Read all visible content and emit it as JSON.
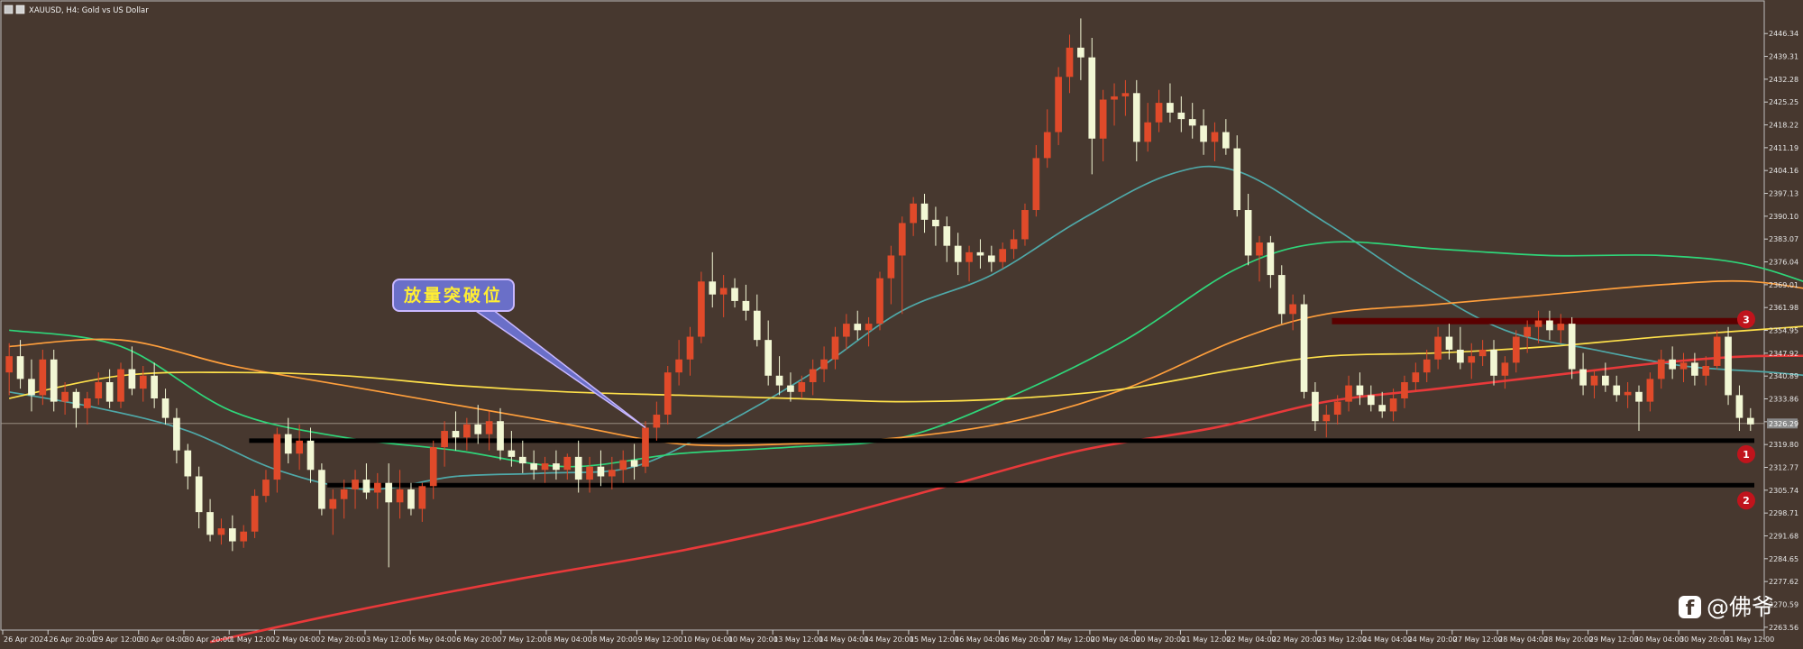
{
  "window": {
    "title": "XAUUSD, H4:  Gold vs US Dollar"
  },
  "colors": {
    "background": "#47382f",
    "bull_candle": "#e04a2a",
    "bear_candle": "#f2f7d4",
    "ma_red": "#e8393a",
    "ma_yellow": "#ffe14a",
    "ma_orange": "#ff9f3c",
    "ma_green": "#2fd67a",
    "ma_teal": "#4fa8a8",
    "support_line": "#000000",
    "resistance_zone": "#5a0000",
    "marker": "#c0141c",
    "callout_fill": "#6a6fc8",
    "callout_text": "#ffee33"
  },
  "callout": {
    "text": "放量突破位"
  },
  "markers": [
    "1",
    "2",
    "3"
  ],
  "current_price_label": "2326.29",
  "watermark": {
    "icon": "facebook-icon",
    "text": "@佛爷"
  },
  "chart_data": {
    "type": "candlestick",
    "symbol": "XAUUSD",
    "timeframe": "H4",
    "ylim": [
      2263.51,
      2453.34
    ],
    "y_ticks": [
      "2446.34",
      "2439.31",
      "2432.28",
      "2425.25",
      "2418.22",
      "2411.19",
      "2404.16",
      "2397.13",
      "2390.10",
      "2383.07",
      "2376.04",
      "2369.01",
      "2361.98",
      "2354.95",
      "2347.92",
      "2340.89",
      "2333.86",
      "2326.83",
      "2319.80",
      "2312.77",
      "2305.74",
      "2298.71",
      "2291.68",
      "2284.65",
      "2277.62",
      "2270.59",
      "2263.56"
    ],
    "x_ticks": [
      "26 Apr 2024",
      "26 Apr 20:00",
      "29 Apr 12:00",
      "30 Apr 04:00",
      "30 Apr 20:00",
      "1 May 12:00",
      "2 May 04:00",
      "2 May 20:00",
      "3 May 12:00",
      "6 May 04:00",
      "6 May 20:00",
      "7 May 12:00",
      "8 May 04:00",
      "8 May 20:00",
      "9 May 12:00",
      "10 May 04:00",
      "10 May 20:00",
      "13 May 12:00",
      "14 May 04:00",
      "14 May 20:00",
      "15 May 12:00",
      "16 May 04:00",
      "16 May 20:00",
      "17 May 12:00",
      "20 May 04:00",
      "20 May 20:00",
      "21 May 12:00",
      "22 May 04:00",
      "22 May 20:00",
      "23 May 12:00",
      "24 May 04:00",
      "24 May 20:00",
      "27 May 12:00",
      "28 May 04:00",
      "28 May 20:00",
      "29 May 12:00",
      "30 May 04:00",
      "30 May 20:00",
      "31 May 12:00"
    ],
    "ohlc": [
      [
        2342,
        2351,
        2335,
        2347
      ],
      [
        2347,
        2352,
        2337,
        2340
      ],
      [
        2340,
        2346,
        2330,
        2335
      ],
      [
        2335,
        2349,
        2332,
        2346
      ],
      [
        2346,
        2349,
        2330,
        2333
      ],
      [
        2333,
        2339,
        2329,
        2336
      ],
      [
        2336,
        2337,
        2325,
        2331
      ],
      [
        2331,
        2336,
        2326,
        2334
      ],
      [
        2334,
        2342,
        2332,
        2339
      ],
      [
        2339,
        2343,
        2331,
        2333
      ],
      [
        2333,
        2345,
        2331,
        2343
      ],
      [
        2343,
        2350,
        2335,
        2337
      ],
      [
        2337,
        2344,
        2333,
        2341
      ],
      [
        2341,
        2345,
        2331,
        2334
      ],
      [
        2334,
        2337,
        2326,
        2328
      ],
      [
        2328,
        2331,
        2314,
        2318
      ],
      [
        2318,
        2320,
        2306,
        2310
      ],
      [
        2310,
        2313,
        2294,
        2299
      ],
      [
        2299,
        2303,
        2290,
        2292
      ],
      [
        2292,
        2297,
        2289,
        2294
      ],
      [
        2294,
        2298,
        2287,
        2290
      ],
      [
        2290,
        2295,
        2288,
        2293
      ],
      [
        2293,
        2306,
        2291,
        2304
      ],
      [
        2304,
        2312,
        2302,
        2309
      ],
      [
        2309,
        2325,
        2305,
        2323
      ],
      [
        2323,
        2328,
        2314,
        2317
      ],
      [
        2317,
        2326,
        2312,
        2321
      ],
      [
        2321,
        2325,
        2308,
        2312
      ],
      [
        2312,
        2314,
        2298,
        2300
      ],
      [
        2300,
        2306,
        2292,
        2303
      ],
      [
        2303,
        2309,
        2297,
        2306
      ],
      [
        2306,
        2312,
        2300,
        2309
      ],
      [
        2309,
        2314,
        2303,
        2305
      ],
      [
        2305,
        2311,
        2300,
        2308
      ],
      [
        2308,
        2314,
        2282,
        2302
      ],
      [
        2302,
        2312,
        2297,
        2306
      ],
      [
        2306,
        2308,
        2298,
        2300
      ],
      [
        2300,
        2308,
        2296,
        2307
      ],
      [
        2307,
        2321,
        2303,
        2319
      ],
      [
        2319,
        2327,
        2313,
        2324
      ],
      [
        2324,
        2330,
        2318,
        2322
      ],
      [
        2322,
        2328,
        2318,
        2326
      ],
      [
        2326,
        2332,
        2320,
        2323
      ],
      [
        2323,
        2330,
        2318,
        2327
      ],
      [
        2327,
        2331,
        2315,
        2318
      ],
      [
        2318,
        2324,
        2313,
        2316
      ],
      [
        2316,
        2321,
        2311,
        2314
      ],
      [
        2314,
        2318,
        2309,
        2312
      ],
      [
        2312,
        2316,
        2308,
        2314
      ],
      [
        2314,
        2318,
        2309,
        2312
      ],
      [
        2312,
        2317,
        2309,
        2316
      ],
      [
        2316,
        2321,
        2305,
        2309
      ],
      [
        2309,
        2316,
        2305,
        2313
      ],
      [
        2313,
        2318,
        2307,
        2310
      ],
      [
        2310,
        2316,
        2306,
        2312
      ],
      [
        2312,
        2318,
        2308,
        2315
      ],
      [
        2315,
        2320,
        2309,
        2313
      ],
      [
        2313,
        2327,
        2311,
        2325
      ],
      [
        2325,
        2333,
        2321,
        2329
      ],
      [
        2329,
        2344,
        2326,
        2342
      ],
      [
        2342,
        2352,
        2338,
        2346
      ],
      [
        2346,
        2356,
        2341,
        2353
      ],
      [
        2353,
        2373,
        2351,
        2370
      ],
      [
        2370,
        2379,
        2362,
        2366
      ],
      [
        2366,
        2372,
        2359,
        2368
      ],
      [
        2368,
        2371,
        2362,
        2364
      ],
      [
        2364,
        2369,
        2358,
        2361
      ],
      [
        2361,
        2366,
        2350,
        2352
      ],
      [
        2352,
        2358,
        2338,
        2341
      ],
      [
        2341,
        2347,
        2335,
        2338
      ],
      [
        2338,
        2342,
        2333,
        2336
      ],
      [
        2336,
        2341,
        2334,
        2339
      ],
      [
        2339,
        2346,
        2335,
        2343
      ],
      [
        2343,
        2350,
        2339,
        2346
      ],
      [
        2346,
        2356,
        2343,
        2353
      ],
      [
        2353,
        2360,
        2349,
        2357
      ],
      [
        2357,
        2361,
        2352,
        2355
      ],
      [
        2355,
        2359,
        2350,
        2357
      ],
      [
        2357,
        2373,
        2355,
        2371
      ],
      [
        2371,
        2381,
        2363,
        2378
      ],
      [
        2378,
        2390,
        2360,
        2388
      ],
      [
        2388,
        2396,
        2384,
        2394
      ],
      [
        2394,
        2397,
        2385,
        2389
      ],
      [
        2389,
        2393,
        2381,
        2387
      ],
      [
        2387,
        2390,
        2376,
        2381
      ],
      [
        2381,
        2385,
        2372,
        2376
      ],
      [
        2376,
        2381,
        2370,
        2379
      ],
      [
        2379,
        2383,
        2374,
        2378
      ],
      [
        2378,
        2381,
        2373,
        2376
      ],
      [
        2376,
        2382,
        2374,
        2380
      ],
      [
        2380,
        2386,
        2377,
        2383
      ],
      [
        2383,
        2394,
        2381,
        2392
      ],
      [
        2392,
        2412,
        2390,
        2408
      ],
      [
        2408,
        2423,
        2405,
        2416
      ],
      [
        2416,
        2436,
        2412,
        2433
      ],
      [
        2433,
        2446,
        2428,
        2442
      ],
      [
        2442,
        2451,
        2432,
        2439
      ],
      [
        2439,
        2445,
        2403,
        2414
      ],
      [
        2414,
        2429,
        2407,
        2426
      ],
      [
        2426,
        2431,
        2418,
        2427
      ],
      [
        2427,
        2432,
        2421,
        2428
      ],
      [
        2428,
        2432,
        2407,
        2413
      ],
      [
        2413,
        2425,
        2410,
        2419
      ],
      [
        2419,
        2429,
        2416,
        2425
      ],
      [
        2425,
        2431,
        2419,
        2422
      ],
      [
        2422,
        2427,
        2416,
        2420
      ],
      [
        2420,
        2425,
        2414,
        2418
      ],
      [
        2418,
        2423,
        2409,
        2413
      ],
      [
        2413,
        2419,
        2407,
        2416
      ],
      [
        2416,
        2420,
        2409,
        2411
      ],
      [
        2411,
        2415,
        2390,
        2392
      ],
      [
        2392,
        2397,
        2375,
        2378
      ],
      [
        2378,
        2384,
        2370,
        2382
      ],
      [
        2382,
        2384,
        2368,
        2372
      ],
      [
        2372,
        2375,
        2357,
        2360
      ],
      [
        2360,
        2366,
        2355,
        2363
      ],
      [
        2363,
        2366,
        2334,
        2336
      ],
      [
        2336,
        2339,
        2324,
        2327
      ],
      [
        2327,
        2332,
        2322,
        2329
      ],
      [
        2329,
        2335,
        2326,
        2333
      ],
      [
        2333,
        2341,
        2330,
        2338
      ],
      [
        2338,
        2342,
        2332,
        2335
      ],
      [
        2335,
        2338,
        2330,
        2332
      ],
      [
        2332,
        2336,
        2328,
        2330
      ],
      [
        2330,
        2337,
        2327,
        2334
      ],
      [
        2334,
        2341,
        2331,
        2339
      ],
      [
        2339,
        2345,
        2336,
        2342
      ],
      [
        2342,
        2349,
        2339,
        2346
      ],
      [
        2346,
        2356,
        2343,
        2353
      ],
      [
        2353,
        2357,
        2346,
        2349
      ],
      [
        2349,
        2356,
        2343,
        2345
      ],
      [
        2345,
        2351,
        2340,
        2347
      ],
      [
        2347,
        2352,
        2344,
        2349
      ],
      [
        2349,
        2352,
        2338,
        2341
      ],
      [
        2341,
        2347,
        2337,
        2345
      ],
      [
        2345,
        2355,
        2342,
        2353
      ],
      [
        2353,
        2358,
        2348,
        2356
      ],
      [
        2356,
        2361,
        2351,
        2358
      ],
      [
        2358,
        2361,
        2352,
        2355
      ],
      [
        2355,
        2360,
        2351,
        2357
      ],
      [
        2357,
        2359,
        2340,
        2343
      ],
      [
        2343,
        2348,
        2335,
        2338
      ],
      [
        2338,
        2343,
        2334,
        2341
      ],
      [
        2341,
        2345,
        2336,
        2338
      ],
      [
        2338,
        2341,
        2333,
        2335
      ],
      [
        2335,
        2339,
        2331,
        2336
      ],
      [
        2336,
        2338,
        2324,
        2333
      ],
      [
        2333,
        2342,
        2330,
        2340
      ],
      [
        2340,
        2349,
        2337,
        2346
      ],
      [
        2346,
        2350,
        2340,
        2343
      ],
      [
        2343,
        2348,
        2339,
        2345
      ],
      [
        2345,
        2348,
        2338,
        2341
      ],
      [
        2341,
        2347,
        2338,
        2344
      ],
      [
        2344,
        2355,
        2343,
        2353
      ],
      [
        2353,
        2356,
        2332,
        2335
      ],
      [
        2335,
        2338,
        2324,
        2328
      ],
      [
        2328,
        2331,
        2324,
        2326
      ]
    ],
    "moving_averages": [
      {
        "color": "#4fa8a8",
        "points": [
          [
            0,
            2336
          ],
          [
            8,
            2331
          ],
          [
            16,
            2324
          ],
          [
            24,
            2312
          ],
          [
            32,
            2306
          ],
          [
            40,
            2310
          ],
          [
            48,
            2311
          ],
          [
            56,
            2313
          ],
          [
            64,
            2326
          ],
          [
            72,
            2342
          ],
          [
            80,
            2361
          ],
          [
            88,
            2372
          ],
          [
            96,
            2389
          ],
          [
            104,
            2403
          ],
          [
            110,
            2404
          ],
          [
            118,
            2388
          ],
          [
            126,
            2370
          ],
          [
            134,
            2355
          ],
          [
            142,
            2349
          ],
          [
            150,
            2344
          ],
          [
            158,
            2342
          ],
          [
            164,
            2340
          ]
        ]
      },
      {
        "color": "#2fd67a",
        "points": [
          [
            0,
            2355
          ],
          [
            10,
            2350
          ],
          [
            20,
            2330
          ],
          [
            30,
            2322
          ],
          [
            40,
            2318
          ],
          [
            50,
            2313
          ],
          [
            60,
            2317
          ],
          [
            70,
            2319
          ],
          [
            80,
            2322
          ],
          [
            90,
            2335
          ],
          [
            100,
            2352
          ],
          [
            110,
            2374
          ],
          [
            118,
            2382
          ],
          [
            128,
            2380
          ],
          [
            138,
            2378
          ],
          [
            148,
            2378
          ],
          [
            156,
            2375
          ],
          [
            164,
            2366
          ]
        ]
      },
      {
        "color": "#ff9f3c",
        "points": [
          [
            0,
            2350
          ],
          [
            10,
            2352
          ],
          [
            20,
            2344
          ],
          [
            30,
            2338
          ],
          [
            40,
            2332
          ],
          [
            50,
            2326
          ],
          [
            60,
            2320
          ],
          [
            70,
            2320
          ],
          [
            80,
            2322
          ],
          [
            90,
            2327
          ],
          [
            100,
            2337
          ],
          [
            110,
            2352
          ],
          [
            118,
            2360
          ],
          [
            128,
            2363
          ],
          [
            138,
            2366
          ],
          [
            148,
            2369
          ],
          [
            156,
            2370
          ],
          [
            164,
            2366
          ]
        ]
      },
      {
        "color": "#ffe14a",
        "points": [
          [
            0,
            2334
          ],
          [
            10,
            2341
          ],
          [
            20,
            2342
          ],
          [
            30,
            2341
          ],
          [
            40,
            2338
          ],
          [
            50,
            2336
          ],
          [
            60,
            2335
          ],
          [
            70,
            2334
          ],
          [
            80,
            2333
          ],
          [
            90,
            2334
          ],
          [
            100,
            2337
          ],
          [
            110,
            2343
          ],
          [
            118,
            2347
          ],
          [
            128,
            2348
          ],
          [
            138,
            2350
          ],
          [
            148,
            2353
          ],
          [
            156,
            2355
          ],
          [
            164,
            2357
          ]
        ]
      },
      {
        "color": "#e8393a",
        "points": [
          [
            18,
            2259
          ],
          [
            30,
            2268
          ],
          [
            45,
            2278
          ],
          [
            60,
            2287
          ],
          [
            72,
            2296
          ],
          [
            84,
            2307
          ],
          [
            96,
            2318
          ],
          [
            108,
            2325
          ],
          [
            118,
            2333
          ],
          [
            128,
            2337
          ],
          [
            138,
            2341
          ],
          [
            148,
            2345
          ],
          [
            156,
            2347
          ],
          [
            164,
            2347
          ]
        ]
      }
    ],
    "horizontal_levels": [
      {
        "label": "1",
        "price": 2321.0,
        "color": "#000000",
        "from_bar": 22
      },
      {
        "label": "2",
        "price": 2307.3,
        "color": "#000000",
        "from_bar": 29
      },
      {
        "label": "3",
        "price": 2357.8,
        "color": "#5a0000",
        "from_bar": 119
      }
    ],
    "callout_anchor_bar": 57,
    "callout_anchor_price": 2325
  }
}
